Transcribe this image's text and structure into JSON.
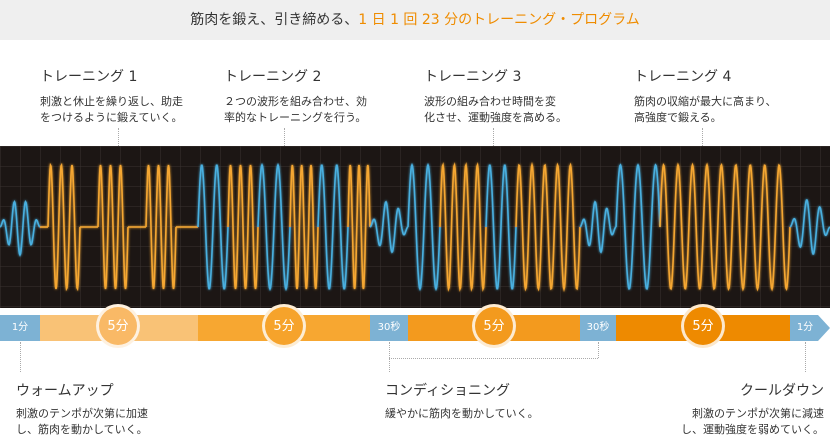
{
  "header": {
    "text_before": "筋肉を鍛え、引き締める、",
    "text_highlight": "1 日 1 回 23 分のトレーニング・プログラム"
  },
  "trainings": [
    {
      "title": "トレーニング 1",
      "desc1": "刺激と休止を繰り返し、助走",
      "desc2": "をつけるように鍛えていく。"
    },
    {
      "title": "トレーニング 2",
      "desc1": "２つの波形を組み合わせ、効",
      "desc2": "率的なトレーニングを行う。"
    },
    {
      "title": "トレーニング 3",
      "desc1": "波形の組み合わせ時間を変",
      "desc2": "化させ、運動強度を高める。"
    },
    {
      "title": "トレーニング 4",
      "desc1": "筋肉の収縮が最大に高まり、",
      "desc2": "高強度で鍛える。"
    }
  ],
  "timeline": {
    "warmup_time": "1分",
    "t1_time": "5分",
    "t2_time": "5分",
    "cond1_time": "30秒",
    "t3_time": "5分",
    "cond2_time": "30秒",
    "t4_time": "5分",
    "cooldown_time": "1分"
  },
  "phases": {
    "warmup": {
      "title": "ウォームアップ",
      "desc1": "刺激のテンポが次第に加速",
      "desc2": "し、筋肉を動かしていく。"
    },
    "conditioning": {
      "title": "コンディショニング",
      "desc1": "緩やかに筋肉を動かしていく。"
    },
    "cooldown": {
      "title": "クールダウン",
      "desc1": "刺激のテンポが次第に減速",
      "desc2": "し、運動強度を弱めていく。"
    }
  },
  "colors": {
    "blue_wave": "#4ab0e0",
    "orange_wave": "#f5a733",
    "bar_light": "#f9b966",
    "bar_mid": "#f6a32b",
    "bar_dark": "#ef8c00",
    "blue_seg": "#7db2d4"
  }
}
